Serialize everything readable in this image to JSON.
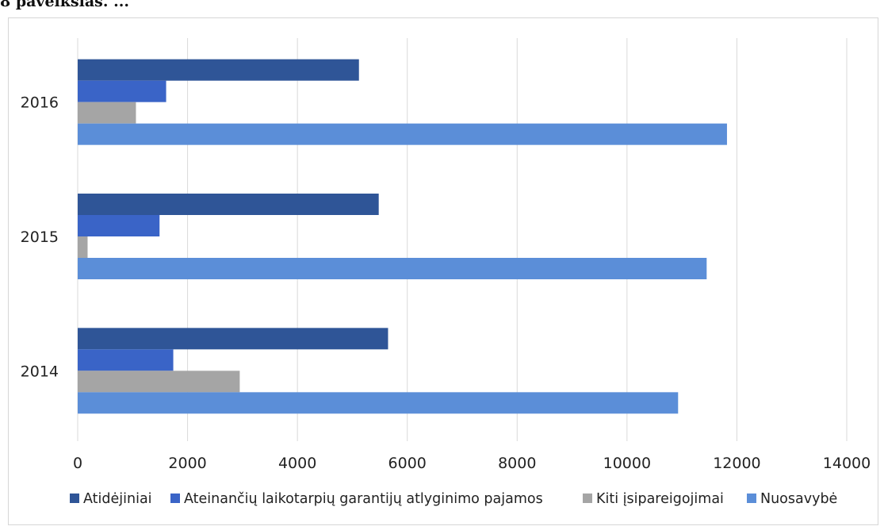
{
  "caption": "8 paveikslas. ...",
  "chart_data": {
    "type": "bar",
    "orientation": "horizontal",
    "categories": [
      "2016",
      "2015",
      "2014"
    ],
    "series": [
      {
        "name": "Atidėjiniai",
        "color": "#2f5597",
        "values": [
          5120,
          5480,
          5650
        ]
      },
      {
        "name": "Ateinančių laikotarpių garantijų atlyginimo pajamos",
        "color": "#3a64c7",
        "values": [
          1610,
          1490,
          1740
        ]
      },
      {
        "name": "Kiti įsipareigojimai",
        "color": "#a5a5a5",
        "values": [
          1060,
          180,
          2950
        ]
      },
      {
        "name": "Nuosavybė",
        "color": "#5b8ed8",
        "values": [
          11820,
          11450,
          10930
        ]
      }
    ],
    "xlim": [
      0,
      14000
    ],
    "xticks": [
      "0",
      "2000",
      "4000",
      "6000",
      "8000",
      "10000",
      "12000",
      "14000"
    ],
    "grid": "vertical",
    "legend": "bottom"
  }
}
